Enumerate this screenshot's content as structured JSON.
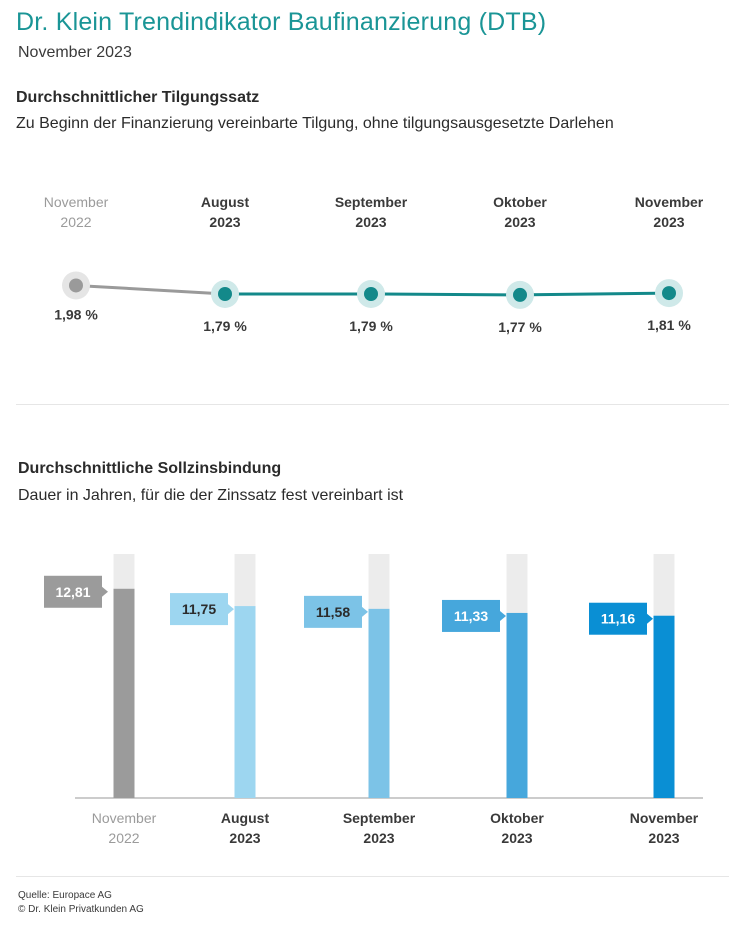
{
  "header": {
    "title": "Dr. Klein Trendindikator Baufinanzierung (DTB)",
    "subtitle": "November 2023"
  },
  "section_tilgung": {
    "title": "Durchschnittlicher Tilgungssatz",
    "subtitle": "Zu Beginn der Finanzierung vereinbarte Tilgung, ohne tilgungsausgesetzte Darlehen"
  },
  "section_zinsbindung": {
    "title": "Durchschnittliche Sollzinsbindung",
    "subtitle": "Dauer in Jahren, für die der Zinssatz fest vereinbart ist"
  },
  "footer": {
    "source": "Quelle: Europace AG",
    "copyright": "© Dr. Klein Privatkunden AG"
  },
  "colors": {
    "accent": "#1a9596",
    "line_teal": "#13898a",
    "point_halo": "#cfe9e9",
    "past_gray": "#9a9a9a",
    "past_halo": "#e5e5e5",
    "bar_track": "#ececec",
    "bar_colors": [
      "#9b9b9b",
      "#9dd6f0",
      "#7cc3e7",
      "#46a7dc",
      "#0a8fd4"
    ]
  },
  "chart_data": [
    {
      "type": "line",
      "categories": [
        {
          "month": "November",
          "year": "2022"
        },
        {
          "month": "August",
          "year": "2023"
        },
        {
          "month": "September",
          "year": "2023"
        },
        {
          "month": "Oktober",
          "year": "2023"
        },
        {
          "month": "November",
          "year": "2023"
        }
      ],
      "values": [
        1.98,
        1.79,
        1.79,
        1.77,
        1.81
      ],
      "value_labels": [
        "1,98 %",
        "1,79 %",
        "1,79 %",
        "1,77 %",
        "1,81 %"
      ],
      "unit": "%"
    },
    {
      "type": "bar",
      "categories": [
        {
          "month": "November",
          "year": "2022"
        },
        {
          "month": "August",
          "year": "2023"
        },
        {
          "month": "September",
          "year": "2023"
        },
        {
          "month": "Oktober",
          "year": "2023"
        },
        {
          "month": "November",
          "year": "2023"
        }
      ],
      "values": [
        12.81,
        11.75,
        11.58,
        11.33,
        11.16
      ],
      "value_labels": [
        "12,81",
        "11,75",
        "11,58",
        "11,33",
        "11,16"
      ],
      "ylim": [
        0,
        15
      ]
    }
  ]
}
